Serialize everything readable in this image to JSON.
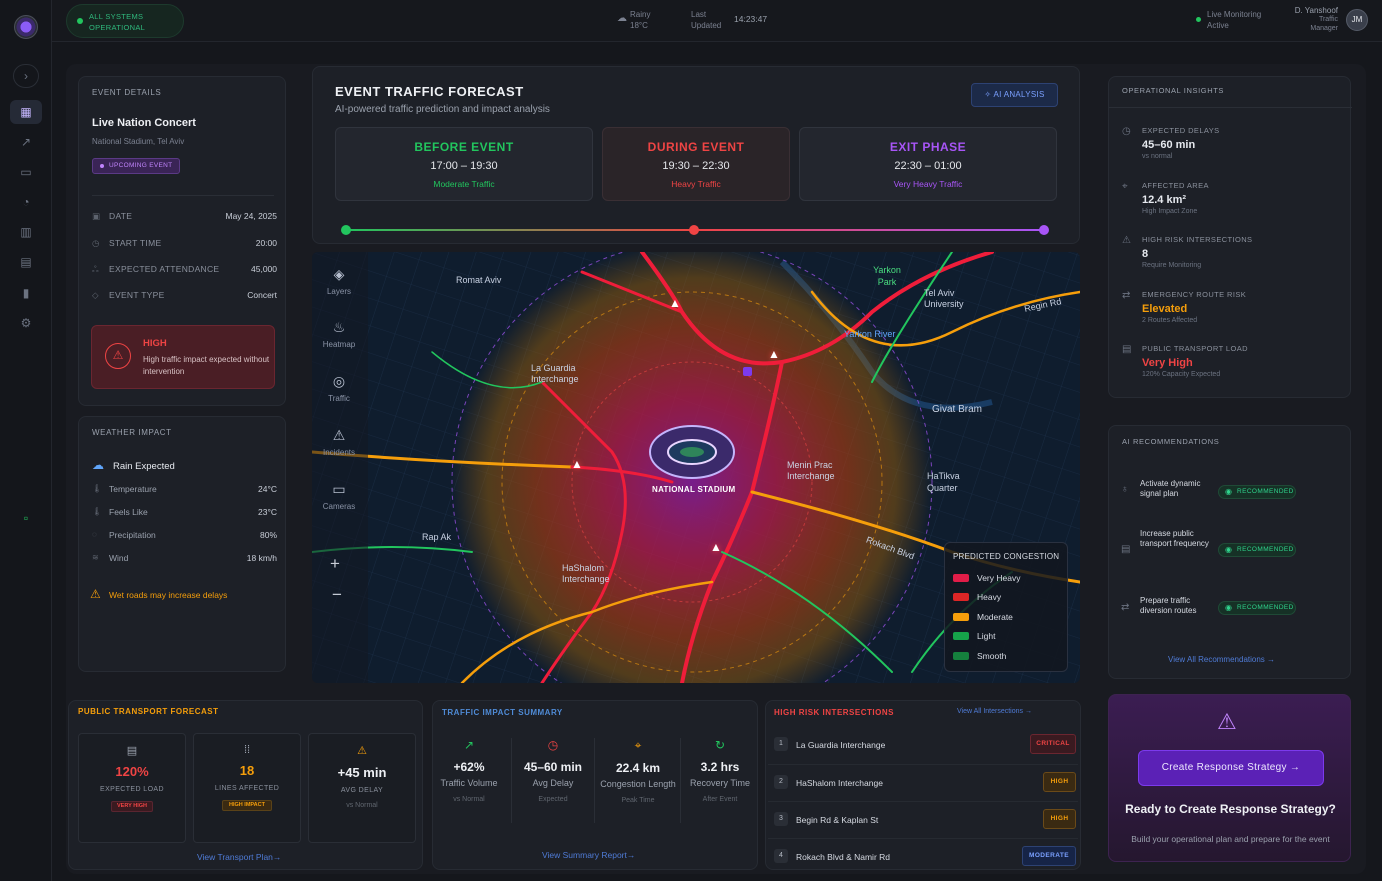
{
  "topbar": {
    "system_status": "ALL SYSTEMS OPERATIONAL",
    "weather_condition": "Rainy",
    "weather_temp": "18°C",
    "last_updated_label": "Last Updated",
    "last_updated_time": "14:23:47",
    "monitoring": "Live Monitoring Active",
    "user_name": "D. Yanshoof",
    "user_role": "Traffic Manager",
    "user_initials": "JM"
  },
  "event": {
    "section": "EVENT DETAILS",
    "name": "Live Nation Concert",
    "venue": "National Stadium, Tel Aviv",
    "badge": "UPCOMING EVENT",
    "rows": [
      {
        "label": "DATE",
        "value": "May 24, 2025"
      },
      {
        "label": "START TIME",
        "value": "20:00"
      },
      {
        "label": "EXPECTED ATTENDANCE",
        "value": "45,000"
      },
      {
        "label": "EVENT TYPE",
        "value": "Concert"
      }
    ],
    "impact_level": "HIGH",
    "impact_text": "High traffic impact expected without intervention"
  },
  "weather": {
    "section": "WEATHER IMPACT",
    "headline": "Rain Expected",
    "rows": [
      {
        "label": "Temperature",
        "value": "24°C"
      },
      {
        "label": "Feels Like",
        "value": "23°C"
      },
      {
        "label": "Precipitation",
        "value": "80%"
      },
      {
        "label": "Wind",
        "value": "18 km/h"
      }
    ],
    "warning": "Wet roads may increase delays"
  },
  "forecast": {
    "title": "EVENT TRAFFIC FORECAST",
    "subtitle": "AI-powered traffic prediction and impact analysis",
    "ai_button": "AI ANALYSIS",
    "phases": [
      {
        "title": "BEFORE EVENT",
        "time": "17:00 – 19:30",
        "status": "Moderate Traffic",
        "color": "#22c55e"
      },
      {
        "title": "DURING EVENT",
        "time": "19:30 – 22:30",
        "status": "Heavy Traffic",
        "color": "#ef4444"
      },
      {
        "title": "EXIT PHASE",
        "time": "22:30 – 01:00",
        "status": "Very Heavy Traffic",
        "color": "#a855f7"
      }
    ]
  },
  "map": {
    "tools": [
      "Layers",
      "Heatmap",
      "Traffic",
      "Incidents",
      "Cameras"
    ],
    "zoom_in": "+",
    "zoom_out": "−",
    "stadium": "NATIONAL STADIUM",
    "places": {
      "romat_aviv": "Romat Aviv",
      "yarkon_park": "Yarkon Park",
      "tel_aviv_university": "Tel Aviv University",
      "regin_rd": "Regin Rd",
      "yarkon_river": "Yarkon River",
      "la_guardia": "La Guardia Interchange",
      "givat_bram": "Givat Bram",
      "menin_prac": "Menin Prac Interchange",
      "hatikva": "HaTikva Quarter",
      "rap_ak": "Rap Ak",
      "rokach": "Rokach Blvd",
      "hashalom": "HaShalom Interchange"
    },
    "legend_title": "PREDICTED CONGESTION",
    "legend": [
      {
        "label": "Very Heavy",
        "color": "#e11d48"
      },
      {
        "label": "Heavy",
        "color": "#dc2626"
      },
      {
        "label": "Moderate",
        "color": "#f59e0b"
      },
      {
        "label": "Light",
        "color": "#16a34a"
      },
      {
        "label": "Smooth",
        "color": "#15803d"
      }
    ]
  },
  "insights": {
    "section": "OPERATIONAL INSIGHTS",
    "items": [
      {
        "label": "EXPECTED DELAYS",
        "value": "45–60 min",
        "sub": "vs normal",
        "color": "#e6e9ef"
      },
      {
        "label": "AFFECTED AREA",
        "value": "12.4 km²",
        "sub": "High Impact Zone",
        "color": "#e6e9ef"
      },
      {
        "label": "HIGH RISK INTERSECTIONS",
        "value": "8",
        "sub": "Require Monitoring",
        "color": "#e6e9ef"
      },
      {
        "label": "EMERGENCY ROUTE RISK",
        "value": "Elevated",
        "sub": "2 Routes Affected",
        "color": "#f59e0b"
      },
      {
        "label": "PUBLIC TRANSPORT LOAD",
        "value": "Very High",
        "sub": "120% Capacity Expected",
        "color": "#ef4444"
      }
    ]
  },
  "recommendations": {
    "section": "AI RECOMMENDATIONS",
    "items": [
      {
        "text": "Activate dynamic signal plan",
        "badge": "RECOMMENDED"
      },
      {
        "text": "Increase public transport frequency",
        "badge": "RECOMMENDED"
      },
      {
        "text": "Prepare traffic diversion routes",
        "badge": "RECOMMENDED"
      }
    ],
    "view_all": "View All Recommendations"
  },
  "cta": {
    "button": "Create Response Strategy",
    "title": "Ready to Create Response Strategy?",
    "sub": "Build your operational plan and prepare for the event"
  },
  "transport": {
    "section": "PUBLIC TRANSPORT FORECAST",
    "boxes": [
      {
        "value": "120%",
        "label": "EXPECTED LOAD",
        "badge": "VERY HIGH"
      },
      {
        "value": "18",
        "label": "LINES AFFECTED",
        "badge": "HIGH IMPACT"
      },
      {
        "value": "+45 min",
        "label": "AVG DELAY",
        "sub": "vs Normal"
      }
    ],
    "link": "View Transport Plan"
  },
  "impact": {
    "section": "TRAFFIC IMPACT SUMMARY",
    "cols": [
      {
        "value": "+62%",
        "label": "Traffic Volume",
        "sub": "vs Normal",
        "icon": "↗",
        "color": "#22c55e"
      },
      {
        "value": "45–60 min",
        "label": "Avg Delay",
        "sub": "Expected",
        "icon": "◷",
        "color": "#ef4444"
      },
      {
        "value": "22.4 km",
        "label": "Congestion Length",
        "sub": "Peak Time",
        "icon": "⌖",
        "color": "#f59e0b"
      },
      {
        "value": "3.2 hrs",
        "label": "Recovery Time",
        "sub": "After Event",
        "icon": "↻",
        "color": "#22c55e"
      }
    ],
    "link": "View Summary Report"
  },
  "intersections": {
    "section": "HIGH RISK INTERSECTIONS",
    "view_all": "View All Intersections",
    "rows": [
      {
        "num": "1",
        "name": "La Guardia Interchange",
        "badge": "CRITICAL"
      },
      {
        "num": "2",
        "name": "HaShalom Interchange",
        "badge": "HIGH"
      },
      {
        "num": "3",
        "name": "Begin Rd & Kaplan St",
        "badge": "HIGH"
      },
      {
        "num": "4",
        "name": "Rokach Blvd & Namir Rd",
        "badge": "MODERATE"
      }
    ]
  }
}
